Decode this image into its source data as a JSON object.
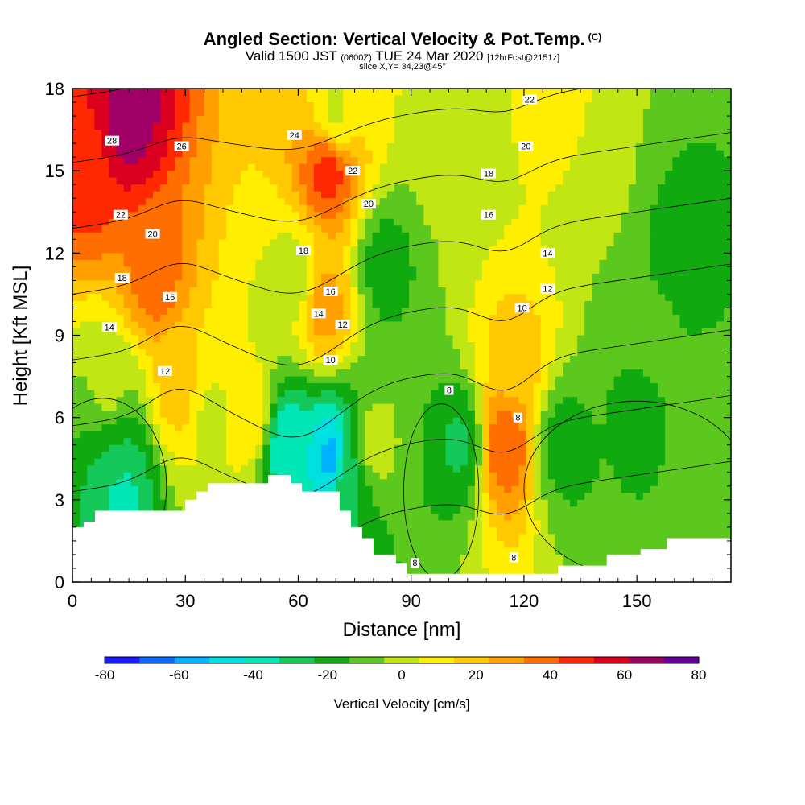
{
  "header": {
    "title": "Angled Section: Vertical Velocity & Pot.Temp.",
    "title_units": "(C)",
    "valid_prefix": "Valid 1500 JST",
    "valid_utc": "(0600Z)",
    "valid_date": "TUE 24 Mar 2020",
    "forecast_info": "[12hrFcst@2151z]",
    "slice_info": "slice X,Y= 34,23@45°"
  },
  "chart_data": {
    "type": "heatmap",
    "xlabel": "Distance [nm]",
    "ylabel": "Height [Kft MSL]",
    "xlim": [
      0,
      175
    ],
    "ylim": [
      0,
      18
    ],
    "xticks": [
      "0",
      "30",
      "60",
      "90",
      "120",
      "150"
    ],
    "xtick_values": [
      0,
      30,
      60,
      90,
      120,
      150
    ],
    "yticks": [
      "0",
      "3",
      "6",
      "9",
      "12",
      "15",
      "18"
    ],
    "ytick_values": [
      0,
      3,
      6,
      9,
      12,
      15,
      18
    ],
    "colorbar": {
      "label": "Vertical Velocity [cm/s]",
      "tick_labels": [
        "-80",
        "-60",
        "-40",
        "-20",
        "0",
        "20",
        "40",
        "60",
        "80"
      ],
      "levels": [
        -80,
        -70,
        -60,
        -50,
        -40,
        -30,
        -20,
        -10,
        0,
        10,
        20,
        30,
        40,
        50,
        60,
        70,
        80
      ],
      "colors": [
        "#1a1aff",
        "#0a6cff",
        "#00b2ff",
        "#00e0e0",
        "#00e6b4",
        "#14c85a",
        "#10aa10",
        "#5cc81e",
        "#c2e614",
        "#ffee00",
        "#ffc800",
        "#ffa000",
        "#ff6e00",
        "#ff2800",
        "#dc0020",
        "#a00066",
        "#64009b"
      ]
    },
    "velocity_features": [
      {
        "x": 3,
        "y": 15,
        "value": 55
      },
      {
        "x": 15,
        "y": 17,
        "value": 75
      },
      {
        "x": 22,
        "y": 11,
        "value": 45
      },
      {
        "x": 28,
        "y": 7,
        "value": 25
      },
      {
        "x": 12,
        "y": 4.5,
        "value": -20
      },
      {
        "x": 13,
        "y": 3.5,
        "value": -35
      },
      {
        "x": 37,
        "y": 6,
        "value": 8
      },
      {
        "x": 47,
        "y": 6,
        "value": 20
      },
      {
        "x": 57,
        "y": 5,
        "value": -40
      },
      {
        "x": 59,
        "y": 11,
        "value": 5
      },
      {
        "x": 68,
        "y": 15,
        "value": 55
      },
      {
        "x": 67,
        "y": 10,
        "value": 35
      },
      {
        "x": 69,
        "y": 4.5,
        "value": -55
      },
      {
        "x": 73,
        "y": 4,
        "value": -20
      },
      {
        "x": 80,
        "y": 5,
        "value": 5
      },
      {
        "x": 83,
        "y": 11.5,
        "value": -15
      },
      {
        "x": 103,
        "y": 5,
        "value": -22
      },
      {
        "x": 115,
        "y": 5,
        "value": 50
      },
      {
        "x": 118,
        "y": 8,
        "value": 25
      },
      {
        "x": 130,
        "y": 5,
        "value": -15
      },
      {
        "x": 150,
        "y": 6,
        "value": -12
      },
      {
        "x": 162,
        "y": 12,
        "value": -15
      },
      {
        "x": 172,
        "y": 5,
        "value": -5
      },
      {
        "x": 70,
        "y": 17,
        "value": 8
      },
      {
        "x": 100,
        "y": 15,
        "value": 2
      },
      {
        "x": 130,
        "y": 17,
        "value": 15
      },
      {
        "x": 140,
        "y": 15,
        "value": 2
      },
      {
        "x": 155,
        "y": 9,
        "value": -8
      },
      {
        "x": 10,
        "y": 7,
        "value": 2
      }
    ],
    "terrain": [
      [
        0,
        2
      ],
      [
        3,
        2
      ],
      [
        3,
        2.2
      ],
      [
        6,
        2.2
      ],
      [
        6,
        2.6
      ],
      [
        30,
        2.6
      ],
      [
        30,
        3
      ],
      [
        33,
        3
      ],
      [
        33,
        3.3
      ],
      [
        36,
        3.3
      ],
      [
        36,
        3.6
      ],
      [
        52,
        3.6
      ],
      [
        52,
        3.9
      ],
      [
        58,
        3.9
      ],
      [
        58,
        3.6
      ],
      [
        61,
        3.6
      ],
      [
        61,
        3.3
      ],
      [
        71,
        3.3
      ],
      [
        71,
        2.6
      ],
      [
        74,
        2.6
      ],
      [
        74,
        2
      ],
      [
        77,
        2
      ],
      [
        77,
        1.6
      ],
      [
        80,
        1.6
      ],
      [
        80,
        1
      ],
      [
        86,
        1
      ],
      [
        86,
        0.7
      ],
      [
        89,
        0.7
      ],
      [
        89,
        0.3
      ],
      [
        129,
        0.3
      ],
      [
        129,
        0.6
      ],
      [
        142,
        0.6
      ],
      [
        142,
        1
      ],
      [
        151,
        1
      ],
      [
        151,
        1.2
      ],
      [
        158,
        1.2
      ],
      [
        158,
        1.6
      ],
      [
        175,
        1.6
      ]
    ],
    "theta_levels": [
      8,
      10,
      12,
      14,
      16,
      18,
      20,
      22,
      24,
      26,
      28
    ],
    "contour_labels": [
      {
        "text": "28",
        "x": 10.5,
        "y": 16.1
      },
      {
        "text": "26",
        "x": 29,
        "y": 15.9
      },
      {
        "text": "24",
        "x": 59,
        "y": 16.3
      },
      {
        "text": "22",
        "x": 12.8,
        "y": 13.4
      },
      {
        "text": "22",
        "x": 74.5,
        "y": 15
      },
      {
        "text": "22",
        "x": 121.5,
        "y": 17.6
      },
      {
        "text": "20",
        "x": 21.3,
        "y": 12.7
      },
      {
        "text": "20",
        "x": 78.7,
        "y": 13.8
      },
      {
        "text": "20",
        "x": 120.5,
        "y": 15.9
      },
      {
        "text": "18",
        "x": 13.2,
        "y": 11.1
      },
      {
        "text": "18",
        "x": 61.4,
        "y": 12.1
      },
      {
        "text": "18",
        "x": 110.6,
        "y": 14.9
      },
      {
        "text": "16",
        "x": 25.9,
        "y": 10.4
      },
      {
        "text": "16",
        "x": 68.6,
        "y": 10.6
      },
      {
        "text": "16",
        "x": 110.6,
        "y": 13.4
      },
      {
        "text": "14",
        "x": 9.8,
        "y": 9.3
      },
      {
        "text": "14",
        "x": 65.4,
        "y": 9.8
      },
      {
        "text": "14",
        "x": 126.3,
        "y": 12
      },
      {
        "text": "12",
        "x": 24.6,
        "y": 7.7
      },
      {
        "text": "12",
        "x": 71.8,
        "y": 9.4
      },
      {
        "text": "12",
        "x": 126.3,
        "y": 10.7
      },
      {
        "text": "10",
        "x": 68.6,
        "y": 8.1
      },
      {
        "text": "10",
        "x": 119.5,
        "y": 10
      },
      {
        "text": "8",
        "x": 100.1,
        "y": 7
      },
      {
        "text": "8",
        "x": 118.4,
        "y": 6
      },
      {
        "text": "8",
        "x": 91,
        "y": 0.7
      },
      {
        "text": "8",
        "x": 117.3,
        "y": 0.9
      }
    ]
  }
}
